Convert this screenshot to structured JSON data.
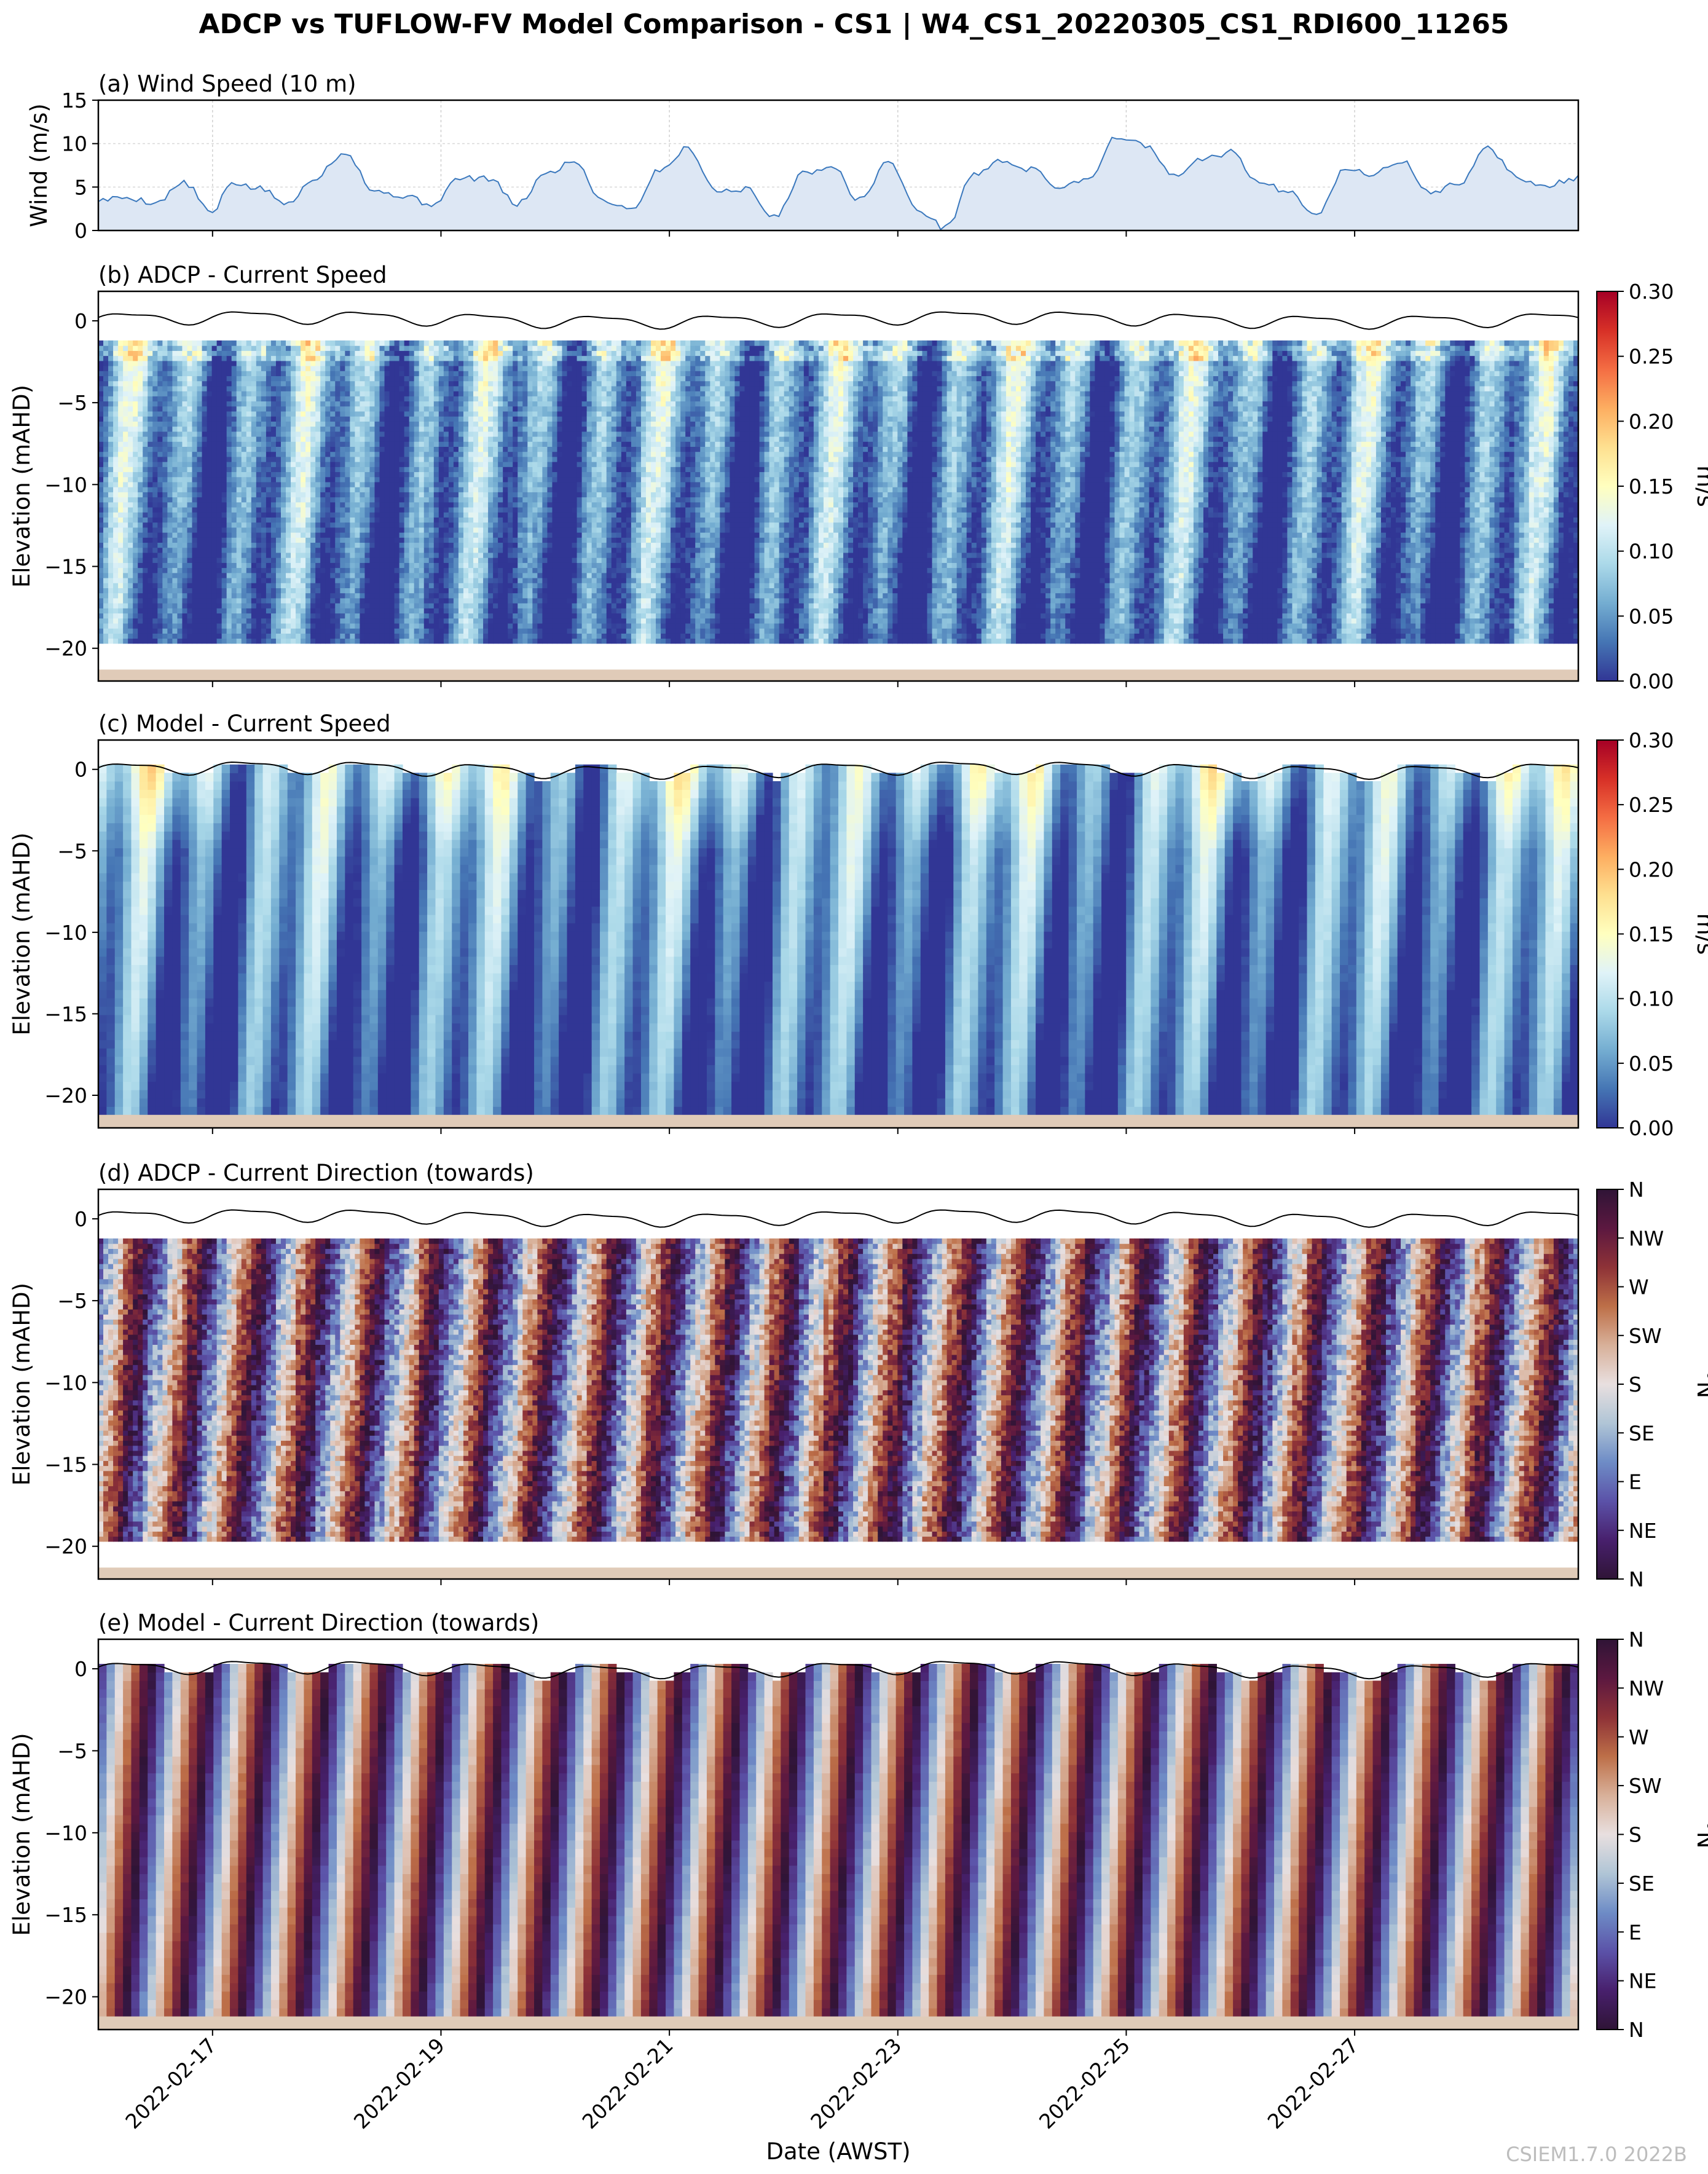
{
  "figure": {
    "title": "ADCP vs TUFLOW-FV Model Comparison - CS1 | W4_CS1_20220305_CS1_RDI600_11265",
    "xlabel": "Date (AWST)",
    "xticks": [
      "2022-02-17",
      "2022-02-19",
      "2022-02-21",
      "2022-02-23",
      "2022-02-25",
      "2022-02-27"
    ],
    "credit": "CSIEM1.7.0 2022B"
  },
  "colors": {
    "wind_line": "#3a78bd",
    "wind_fill": "#dde7f4",
    "seabed": "#e0cbb8",
    "surface_line": "#000000",
    "speed_cmap": [
      "#313695",
      "#4575b4",
      "#74add1",
      "#abd9e9",
      "#e0f3f8",
      "#ffffbf",
      "#fee090",
      "#fdae61",
      "#f46d43",
      "#d73027",
      "#a50026"
    ],
    "dir_cmap": [
      "#2f1436",
      "#48206d",
      "#5b52a8",
      "#6e8cc6",
      "#b0c5d6",
      "#e8dfdf",
      "#d8b099",
      "#bd6f48",
      "#8e3237",
      "#5c1840",
      "#2f1436"
    ]
  },
  "chart_data": [
    {
      "id": "a",
      "type": "area",
      "title": "(a) Wind Speed (10 m)",
      "xlabel": "",
      "ylabel": "Wind (m/s)",
      "xlim": [
        "2022-02-16 00:00",
        "2022-02-28 23:00"
      ],
      "ylim": [
        0,
        15
      ],
      "yticks": [
        0,
        5,
        10,
        15
      ],
      "grid": true,
      "series": [
        {
          "name": "Wind speed",
          "x_hours": [
            0,
            6,
            12,
            18,
            24,
            28,
            34,
            40,
            45,
            52,
            58,
            64,
            70,
            76,
            82,
            88,
            94,
            100,
            106,
            112,
            118,
            124,
            130,
            136,
            142,
            148,
            154,
            160,
            166,
            172,
            178,
            184,
            190,
            196,
            202,
            208,
            214,
            220,
            226,
            232,
            238,
            244,
            250,
            256,
            262,
            268,
            274,
            280,
            286,
            292,
            298,
            304,
            310
          ],
          "values": [
            3.5,
            3.8,
            3.2,
            5.5,
            2.0,
            5.5,
            4.8,
            3.0,
            6.0,
            9.0,
            4.5,
            4.0,
            3.0,
            6.0,
            6.0,
            3.0,
            6.5,
            8.0,
            3.5,
            2.5,
            7.0,
            9.5,
            4.5,
            4.8,
            1.5,
            6.5,
            7.5,
            3.5,
            8.0,
            2.5,
            0.3,
            6.5,
            8.0,
            7.0,
            5.0,
            6.0,
            10.8,
            9.8,
            6.2,
            8.2,
            9.0,
            5.5,
            4.5,
            2.0,
            7.0,
            6.5,
            8.0,
            4.2,
            5.5,
            9.5,
            6.2,
            5.0,
            6.0
          ]
        }
      ]
    },
    {
      "id": "b",
      "type": "heatmap",
      "title": "(b) ADCP - Current Speed",
      "ylabel": "Elevation (mAHD)",
      "yticks": [
        0,
        -5,
        -10,
        -15,
        -20
      ],
      "ylim": [
        -22,
        1.8
      ],
      "bed_elevation": -21.3,
      "profile_range": [
        -19.7,
        -1.2
      ],
      "colorbar": {
        "label": "m/s",
        "ticks": [
          "0.30",
          "0.25",
          "0.20",
          "0.15",
          "0.10",
          "0.05",
          "0.00"
        ],
        "range": [
          0,
          0.3
        ]
      },
      "cmap": "RdYlBu_r",
      "variable": "speed",
      "source": "adcp",
      "seed": 11
    },
    {
      "id": "c",
      "type": "heatmap",
      "title": "(c) Model - Current Speed",
      "ylabel": "Elevation (mAHD)",
      "yticks": [
        0,
        -5,
        -10,
        -15,
        -20
      ],
      "ylim": [
        -22,
        1.8
      ],
      "bed_elevation": -21.2,
      "profile_range": [
        -21.2,
        0.3
      ],
      "colorbar": {
        "label": "m/s",
        "ticks": [
          "0.30",
          "0.25",
          "0.20",
          "0.15",
          "0.10",
          "0.05",
          "0.00"
        ],
        "range": [
          0,
          0.3
        ]
      },
      "cmap": "RdYlBu_r",
      "variable": "speed",
      "source": "model",
      "seed": 23
    },
    {
      "id": "d",
      "type": "heatmap",
      "title": "(d) ADCP - Current Direction (towards)",
      "ylabel": "Elevation (mAHD)",
      "yticks": [
        0,
        -5,
        -10,
        -15,
        -20
      ],
      "ylim": [
        -22,
        1.8
      ],
      "bed_elevation": -21.3,
      "profile_range": [
        -19.7,
        -1.2
      ],
      "colorbar": {
        "label": "°N",
        "ticks": [
          "N",
          "NW",
          "W",
          "SW",
          "S",
          "SE",
          "E",
          "NE",
          "N"
        ],
        "range": [
          0,
          360
        ]
      },
      "cmap": "twilight_shifted",
      "variable": "direction",
      "source": "adcp",
      "seed": 37
    },
    {
      "id": "e",
      "type": "heatmap",
      "title": "(e) Model - Current Direction (towards)",
      "ylabel": "Elevation (mAHD)",
      "yticks": [
        0,
        -5,
        -10,
        -15,
        -20
      ],
      "ylim": [
        -22,
        1.8
      ],
      "bed_elevation": -21.2,
      "profile_range": [
        -21.2,
        0.3
      ],
      "colorbar": {
        "label": "°N",
        "ticks": [
          "N",
          "NW",
          "W",
          "SW",
          "S",
          "SE",
          "E",
          "NE",
          "N"
        ],
        "range": [
          0,
          360
        ]
      },
      "cmap": "twilight_shifted",
      "variable": "direction",
      "source": "model",
      "seed": 53
    }
  ]
}
